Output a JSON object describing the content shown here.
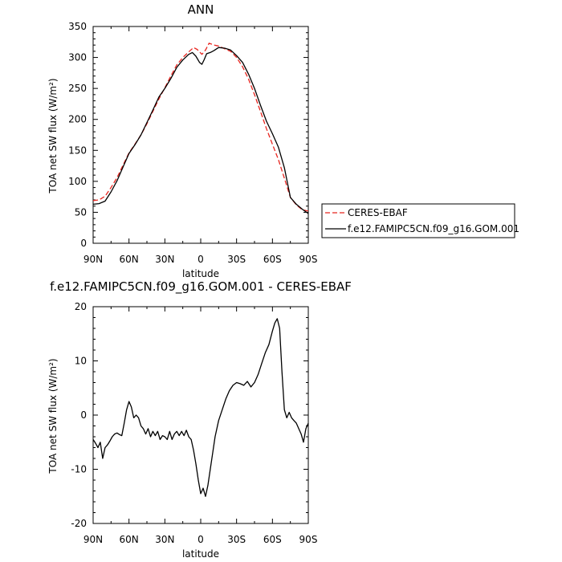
{
  "chart_data": [
    {
      "type": "line",
      "title": "ANN",
      "xlabel": "latitude",
      "ylabel": "TOA net SW flux (W/m²)",
      "x_ticks": [
        90,
        60,
        30,
        0,
        -30,
        -60,
        -90
      ],
      "x_tick_labels": [
        "90N",
        "60N",
        "30N",
        "0",
        "30S",
        "60S",
        "90S"
      ],
      "xlim": [
        90,
        -90
      ],
      "ylim": [
        0,
        350
      ],
      "y_ticks": [
        0,
        50,
        100,
        150,
        200,
        250,
        300,
        350
      ],
      "y_tick_labels": [
        "0",
        "50",
        "100",
        "150",
        "200",
        "250",
        "300",
        "350"
      ],
      "legend_position": "right",
      "series": [
        {
          "name": "CERES-EBAF",
          "color": "#e8251f",
          "dash": "dashed",
          "points": [
            [
              90,
              69
            ],
            [
              85,
              70
            ],
            [
              80,
              76
            ],
            [
              75,
              90
            ],
            [
              70,
              106
            ],
            [
              65,
              126
            ],
            [
              60,
              146
            ],
            [
              55,
              160
            ],
            [
              50,
              175
            ],
            [
              45,
              193
            ],
            [
              40,
              213
            ],
            [
              35,
              233
            ],
            [
              30,
              251
            ],
            [
              25,
              270
            ],
            [
              20,
              288
            ],
            [
              15,
              300
            ],
            [
              10,
              309
            ],
            [
              6,
              316
            ],
            [
              3,
              313
            ],
            [
              -1,
              305
            ],
            [
              -4,
              312
            ],
            [
              -7,
              323
            ],
            [
              -11,
              320
            ],
            [
              -16,
              318
            ],
            [
              -20,
              314
            ],
            [
              -25,
              310
            ],
            [
              -30,
              300
            ],
            [
              -35,
              285
            ],
            [
              -40,
              265
            ],
            [
              -45,
              240
            ],
            [
              -50,
              213
            ],
            [
              -55,
              185
            ],
            [
              -60,
              160
            ],
            [
              -65,
              135
            ],
            [
              -70,
              105
            ],
            [
              -75,
              74
            ],
            [
              -80,
              62
            ],
            [
              -85,
              54
            ],
            [
              -90,
              52
            ]
          ]
        },
        {
          "name": "f.e12.FAMIPC5CN.f09_g16.GOM.001",
          "color": "#000000",
          "dash": "solid",
          "points": [
            [
              90,
              63
            ],
            [
              85,
              64
            ],
            [
              80,
              68
            ],
            [
              75,
              83
            ],
            [
              70,
              101
            ],
            [
              65,
              123
            ],
            [
              60,
              145
            ],
            [
              55,
              159
            ],
            [
              50,
              175
            ],
            [
              45,
              195
            ],
            [
              40,
              215
            ],
            [
              35,
              236
            ],
            [
              30,
              250
            ],
            [
              25,
              266
            ],
            [
              20,
              284
            ],
            [
              15,
              296
            ],
            [
              10,
              305
            ],
            [
              7,
              308
            ],
            [
              4,
              302
            ],
            [
              1,
              292
            ],
            [
              -1,
              289
            ],
            [
              -3,
              297
            ],
            [
              -5,
              306
            ],
            [
              -8,
              308
            ],
            [
              -11,
              311
            ],
            [
              -15,
              316
            ],
            [
              -20,
              315
            ],
            [
              -25,
              312
            ],
            [
              -30,
              303
            ],
            [
              -35,
              292
            ],
            [
              -40,
              273
            ],
            [
              -45,
              250
            ],
            [
              -50,
              223
            ],
            [
              -55,
              197
            ],
            [
              -60,
              177
            ],
            [
              -65,
              155
            ],
            [
              -70,
              122
            ],
            [
              -75,
              74
            ],
            [
              -80,
              63
            ],
            [
              -85,
              55
            ],
            [
              -90,
              48
            ]
          ]
        }
      ]
    },
    {
      "type": "line",
      "title": "f.e12.FAMIPC5CN.f09_g16.GOM.001 - CERES-EBAF",
      "xlabel": "latitude",
      "ylabel": "TOA net SW flux (W/m²)",
      "x_ticks": [
        90,
        60,
        30,
        0,
        -30,
        -60,
        -90
      ],
      "x_tick_labels": [
        "90N",
        "60N",
        "30N",
        "0",
        "30S",
        "60S",
        "90S"
      ],
      "xlim": [
        90,
        -90
      ],
      "ylim": [
        -20,
        20
      ],
      "y_ticks": [
        -20,
        -10,
        0,
        10,
        20
      ],
      "y_tick_labels": [
        "-20",
        "-10",
        "0",
        "10",
        "20"
      ],
      "series": [
        {
          "color": "#000000",
          "dash": "solid",
          "points": [
            [
              90,
              -4.5
            ],
            [
              88,
              -5.2
            ],
            [
              86,
              -6.0
            ],
            [
              84,
              -5.0
            ],
            [
              82,
              -8.0
            ],
            [
              80,
              -6.0
            ],
            [
              78,
              -5.5
            ],
            [
              76,
              -4.8
            ],
            [
              74,
              -4.0
            ],
            [
              72,
              -3.5
            ],
            [
              70,
              -3.3
            ],
            [
              68,
              -3.6
            ],
            [
              66,
              -3.8
            ],
            [
              64,
              -1.5
            ],
            [
              62,
              1.0
            ],
            [
              60,
              2.5
            ],
            [
              58,
              1.5
            ],
            [
              56,
              -0.5
            ],
            [
              54,
              0.0
            ],
            [
              52,
              -0.5
            ],
            [
              50,
              -2.0
            ],
            [
              48,
              -2.5
            ],
            [
              46,
              -3.5
            ],
            [
              44,
              -2.5
            ],
            [
              42,
              -4.0
            ],
            [
              40,
              -3.0
            ],
            [
              38,
              -3.8
            ],
            [
              36,
              -3.0
            ],
            [
              34,
              -4.5
            ],
            [
              32,
              -3.8
            ],
            [
              30,
              -4.0
            ],
            [
              28,
              -4.5
            ],
            [
              26,
              -3.0
            ],
            [
              24,
              -4.5
            ],
            [
              22,
              -3.5
            ],
            [
              20,
              -3.0
            ],
            [
              18,
              -3.8
            ],
            [
              16,
              -3.0
            ],
            [
              14,
              -3.8
            ],
            [
              12,
              -2.8
            ],
            [
              10,
              -4.0
            ],
            [
              8,
              -4.5
            ],
            [
              6,
              -6.5
            ],
            [
              4,
              -9.0
            ],
            [
              2,
              -12.0
            ],
            [
              0,
              -14.5
            ],
            [
              -2,
              -13.5
            ],
            [
              -4,
              -15.0
            ],
            [
              -6,
              -13.0
            ],
            [
              -8,
              -10.0
            ],
            [
              -10,
              -7.0
            ],
            [
              -12,
              -4.0
            ],
            [
              -15,
              -1.0
            ],
            [
              -18,
              1.0
            ],
            [
              -21,
              3.0
            ],
            [
              -24,
              4.5
            ],
            [
              -27,
              5.5
            ],
            [
              -30,
              6.0
            ],
            [
              -33,
              5.8
            ],
            [
              -36,
              5.5
            ],
            [
              -39,
              6.2
            ],
            [
              -42,
              5.2
            ],
            [
              -45,
              6.0
            ],
            [
              -48,
              7.5
            ],
            [
              -51,
              9.5
            ],
            [
              -54,
              11.5
            ],
            [
              -57,
              13.0
            ],
            [
              -60,
              15.5
            ],
            [
              -62,
              17.0
            ],
            [
              -64,
              17.8
            ],
            [
              -66,
              16.0
            ],
            [
              -68,
              8.0
            ],
            [
              -70,
              1.0
            ],
            [
              -72,
              -0.5
            ],
            [
              -74,
              0.5
            ],
            [
              -76,
              -0.5
            ],
            [
              -78,
              -1.0
            ],
            [
              -80,
              -1.5
            ],
            [
              -82,
              -2.5
            ],
            [
              -84,
              -3.5
            ],
            [
              -86,
              -5.0
            ],
            [
              -88,
              -2.5
            ],
            [
              -90,
              -1.5
            ]
          ]
        }
      ]
    }
  ]
}
